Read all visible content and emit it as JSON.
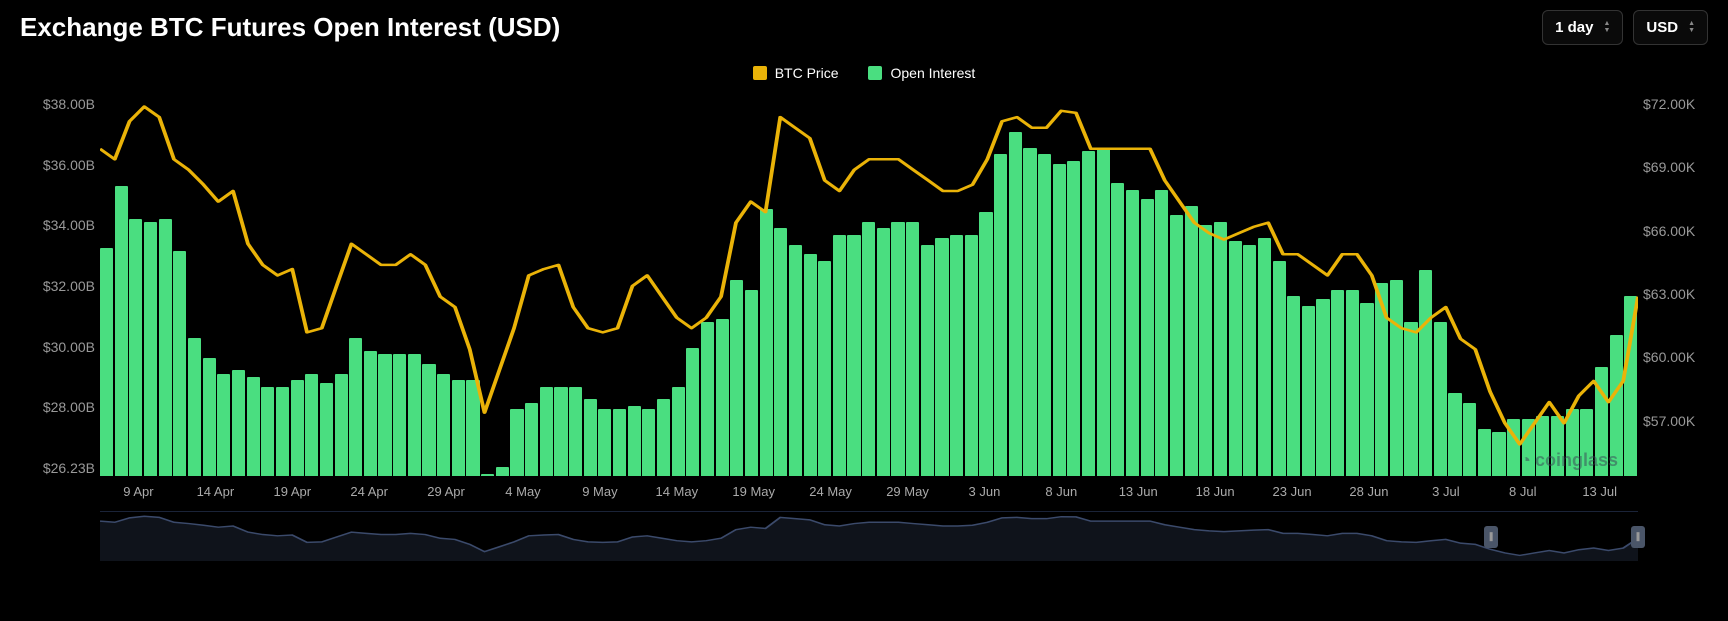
{
  "header": {
    "title": "Exchange BTC Futures Open Interest (USD)",
    "timeframe_dropdown": {
      "label": "1 day"
    },
    "currency_dropdown": {
      "label": "USD"
    }
  },
  "legend": {
    "items": [
      {
        "label": "BTC Price",
        "color": "#eab308"
      },
      {
        "label": "Open Interest",
        "color": "#4ade80"
      }
    ]
  },
  "chart": {
    "type": "bar_line_combo",
    "background_color": "#000000",
    "left_axis": {
      "min": 26.23,
      "max": 38.0,
      "ticks": [
        "$38.00B",
        "$36.00B",
        "$34.00B",
        "$32.00B",
        "$30.00B",
        "$28.00B",
        "$26.23B"
      ],
      "label_color": "#999999",
      "label_fontsize": 14
    },
    "right_axis": {
      "min": 54.0,
      "max": 72.0,
      "ticks": [
        "$72.00K",
        "$69.00K",
        "$66.00K",
        "$63.00K",
        "$60.00K",
        "$57.00K",
        ""
      ],
      "label_color": "#999999",
      "label_fontsize": 14
    },
    "x_axis": {
      "ticks": [
        "9 Apr",
        "14 Apr",
        "19 Apr",
        "24 Apr",
        "29 Apr",
        "4 May",
        "9 May",
        "14 May",
        "19 May",
        "24 May",
        "29 May",
        "3 Jun",
        "8 Jun",
        "13 Jun",
        "18 Jun",
        "23 Jun",
        "28 Jun",
        "3 Jul",
        "8 Jul",
        "13 Jul"
      ],
      "label_color": "#aaaaaa",
      "label_fontsize": 13
    },
    "bars": {
      "color": "#4ade80",
      "values": [
        33.3,
        35.2,
        34.2,
        34.1,
        34.2,
        33.2,
        30.5,
        29.9,
        29.4,
        29.5,
        29.3,
        29.0,
        29.0,
        29.2,
        29.4,
        29.1,
        29.4,
        30.5,
        30.1,
        30.0,
        30.0,
        30.0,
        29.7,
        29.4,
        29.2,
        29.2,
        26.3,
        26.5,
        28.3,
        28.5,
        29.0,
        29.0,
        29.0,
        28.6,
        28.3,
        28.3,
        28.4,
        28.3,
        28.6,
        29.0,
        30.2,
        31.0,
        31.1,
        32.3,
        32.0,
        34.5,
        33.9,
        33.4,
        33.1,
        32.9,
        33.7,
        33.7,
        34.1,
        33.9,
        34.1,
        34.1,
        33.4,
        33.6,
        33.7,
        33.7,
        34.4,
        36.2,
        36.9,
        36.4,
        36.2,
        35.9,
        36.0,
        36.3,
        36.4,
        35.3,
        35.1,
        34.8,
        35.1,
        34.3,
        34.6,
        34.0,
        34.1,
        33.5,
        33.4,
        33.6,
        32.9,
        31.8,
        31.5,
        31.7,
        32.0,
        32.0,
        31.6,
        32.2,
        32.3,
        31.0,
        32.6,
        31.0,
        28.8,
        28.5,
        27.7,
        27.6,
        28.0,
        28.0,
        28.1,
        28.1,
        28.3,
        28.3,
        29.6,
        30.6,
        31.8
      ]
    },
    "line": {
      "color": "#eab308",
      "width": 2.5,
      "values": [
        69.5,
        69.0,
        70.8,
        71.5,
        71.0,
        69.0,
        68.5,
        67.8,
        67.0,
        67.5,
        65.0,
        64.0,
        63.5,
        63.8,
        60.8,
        61.0,
        63.0,
        65.0,
        64.5,
        64.0,
        64.0,
        64.5,
        64.0,
        62.5,
        62.0,
        60.0,
        57.0,
        59.0,
        61.0,
        63.5,
        63.8,
        64.0,
        62.0,
        61.0,
        60.8,
        61.0,
        63.0,
        63.5,
        62.5,
        61.5,
        61.0,
        61.5,
        62.5,
        66.0,
        67.0,
        66.5,
        71.0,
        70.5,
        70.0,
        68.0,
        67.5,
        68.5,
        69.0,
        69.0,
        69.0,
        68.5,
        68.0,
        67.5,
        67.5,
        67.8,
        69.0,
        70.8,
        71.0,
        70.5,
        70.5,
        71.3,
        71.2,
        69.5,
        69.5,
        69.5,
        69.5,
        69.5,
        68.0,
        67.0,
        66.0,
        65.5,
        65.2,
        65.5,
        65.8,
        66.0,
        64.5,
        64.5,
        64.0,
        63.5,
        64.5,
        64.5,
        63.5,
        61.5,
        61.0,
        60.8,
        61.5,
        62.0,
        60.5,
        60.0,
        58.0,
        56.5,
        55.5,
        56.5,
        57.5,
        56.5,
        57.8,
        58.5,
        57.5,
        58.5,
        62.5
      ]
    }
  },
  "brush": {
    "line_color": "#3b4a6b",
    "handle_color": "#4a5568",
    "selection_start_pct": 90,
    "selection_end_pct": 100
  },
  "watermark": {
    "text": "coinglass",
    "color": "#3a4556"
  }
}
